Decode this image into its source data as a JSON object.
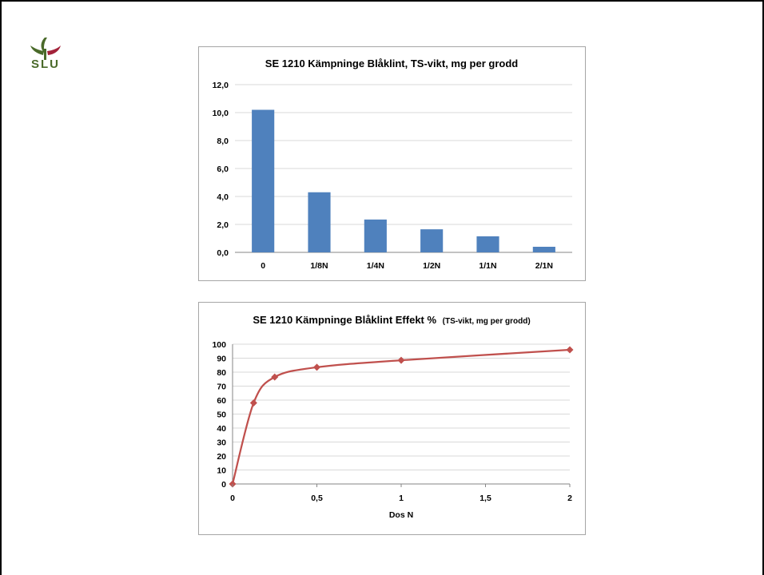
{
  "logo": {
    "text": "SLU"
  },
  "colors": {
    "bar": "#4f81bd",
    "line": "#c0504d",
    "grid": "#d9d9d9",
    "logo_green": "#4a6a2a",
    "logo_red": "#a3233a"
  },
  "chart_data": [
    {
      "type": "bar",
      "title": "SE 1210 Kämpninge Blåklint, TS-vikt, mg per grodd",
      "categories": [
        "0",
        "1/8N",
        "1/4N",
        "1/2N",
        "1/1N",
        "2/1N"
      ],
      "values": [
        10.2,
        4.3,
        2.35,
        1.65,
        1.15,
        0.4
      ],
      "ylim": [
        0,
        12
      ],
      "yticks": [
        "0,0",
        "2,0",
        "4,0",
        "6,0",
        "8,0",
        "10,0",
        "12,0"
      ],
      "xlabel": "",
      "ylabel": "",
      "grid": true,
      "legend": "none"
    },
    {
      "type": "line",
      "title": "SE 1210 Kämpninge Blåklint  Effekt %",
      "subtitle": "(TS-vikt, mg per grodd)",
      "x": [
        0,
        0.125,
        0.25,
        0.5,
        1,
        2
      ],
      "y": [
        0,
        58,
        76.5,
        83.5,
        88.5,
        96
      ],
      "xlim": [
        0,
        2
      ],
      "ylim": [
        0,
        100
      ],
      "xticks": [
        "0",
        "0,5",
        "1",
        "1,5",
        "2"
      ],
      "yticks": [
        "0",
        "10",
        "20",
        "30",
        "40",
        "50",
        "60",
        "70",
        "80",
        "90",
        "100"
      ],
      "xlabel": "Dos N",
      "ylabel": "",
      "grid": true,
      "legend": "none",
      "marker": "diamond"
    }
  ]
}
